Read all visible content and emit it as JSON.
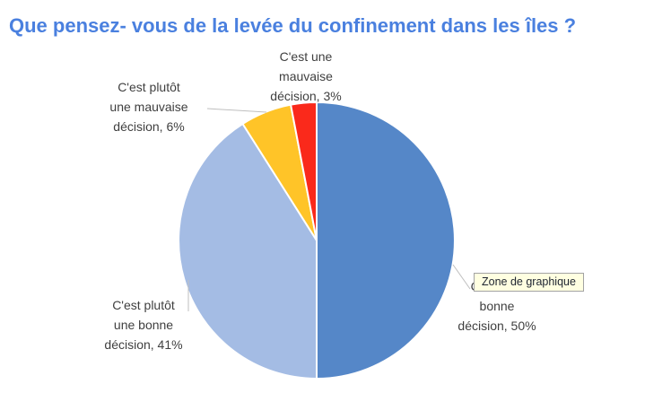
{
  "title": "Que pensez- vous de la levée du confinement dans les îles ?",
  "tooltip": {
    "text": "Zone de graphique"
  },
  "labels": {
    "bonne_50": "C'est une\nbonne\ndécision, 50%",
    "plutot_bonne_41": "C'est plutôt\nune bonne\ndécision, 41%",
    "plutot_mauvaise_6": "C'est plutôt\nune mauvaise\ndécision, 6%",
    "mauvaise_3": "C'est une\nmauvaise\ndécision, 3%"
  },
  "colors": {
    "title_text": "#4A80DF",
    "label_text": "#3F3F3F",
    "leader_line": "#BFBFBF",
    "tooltip_bg": "#FFFFE1",
    "tooltip_border": "#A3A3A3",
    "slice_gap": "#FFFFFF"
  },
  "chart_data": {
    "type": "pie",
    "title": "Que pensez- vous de la levée du confinement dans les îles ?",
    "start_angle_deg": 0,
    "direction": "clockwise",
    "legend": "none",
    "slices": [
      {
        "label": "C'est une bonne décision",
        "value": 50,
        "unit": "%",
        "color": "#5587C8"
      },
      {
        "label": "C'est plutôt une bonne décision",
        "value": 41,
        "unit": "%",
        "color": "#A4BCE4"
      },
      {
        "label": "C'est plutôt une mauvaise décision",
        "value": 6,
        "unit": "%",
        "color": "#FFC428"
      },
      {
        "label": "C'est une mauvaise décision",
        "value": 3,
        "unit": "%",
        "color": "#FA291B"
      }
    ]
  }
}
